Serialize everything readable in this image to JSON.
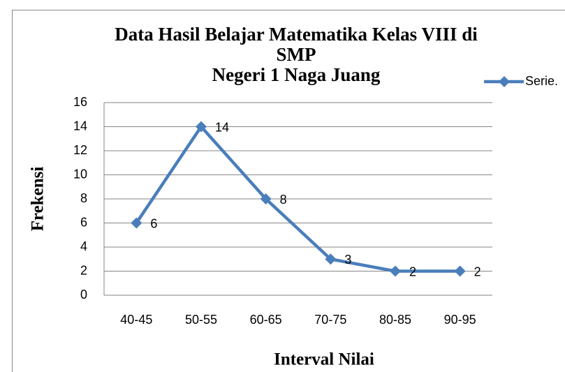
{
  "chart_data": {
    "type": "line",
    "title": [
      "Data Hasil Belajar Matematika Kelas VIII di",
      "SMP",
      "Negeri 1 Naga Juang"
    ],
    "x_label": "Interval Nilai",
    "y_label": "Frekensi",
    "categories": [
      "40-45",
      "50-55",
      "60-65",
      "70-75",
      "80-85",
      "90-95"
    ],
    "series": [
      {
        "name": "Serie.",
        "color": "#4a7ebb",
        "values": [
          6,
          14,
          8,
          3,
          2,
          2
        ]
      }
    ],
    "ylim": [
      0,
      16
    ],
    "yticks": [
      0,
      2,
      4,
      6,
      8,
      10,
      12,
      14,
      16
    ],
    "grid": true,
    "legend": "right"
  }
}
